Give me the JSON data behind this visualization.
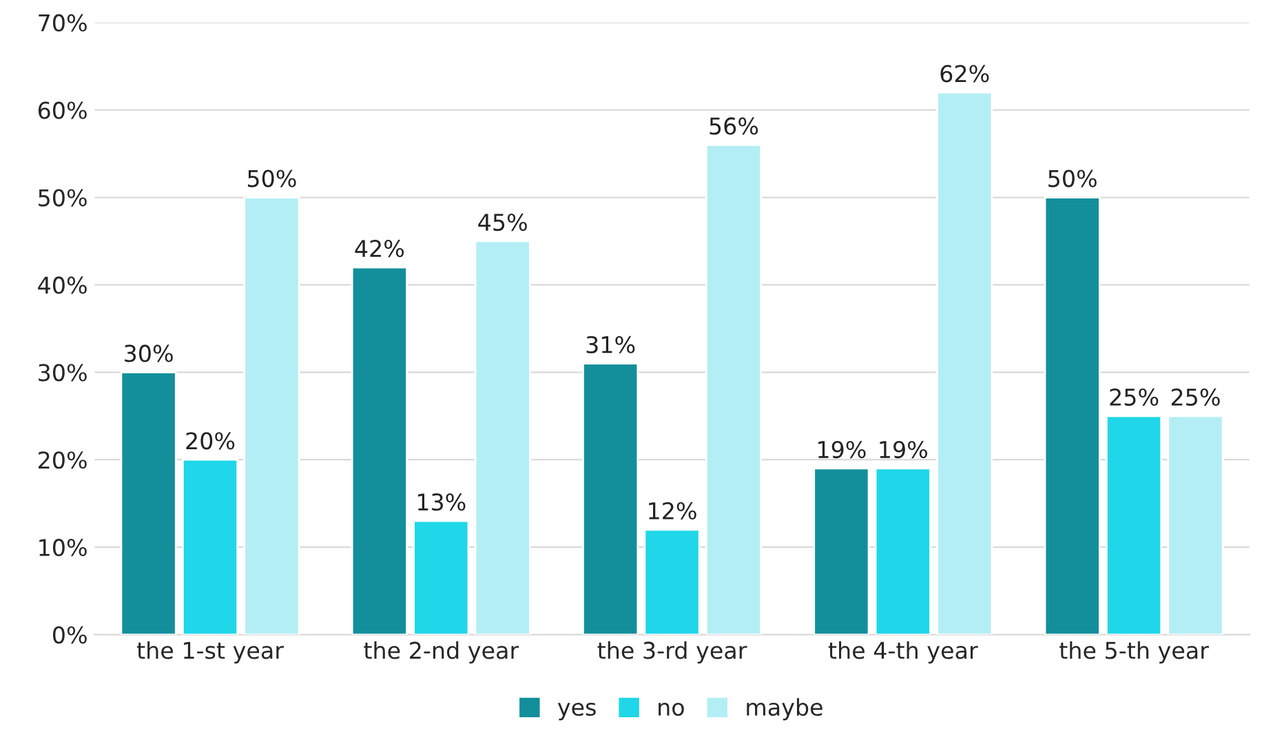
{
  "chart_data": {
    "type": "bar",
    "categories": [
      "the 1-st year",
      "the 2-nd year",
      "the 3-rd year",
      "the 4-th year",
      "the 5-th year"
    ],
    "series": [
      {
        "name": "yes",
        "color": "#138f9b",
        "values": [
          30,
          42,
          31,
          19,
          50
        ],
        "value_labels": [
          "30%",
          "42%",
          "31%",
          "19%",
          "50%"
        ]
      },
      {
        "name": "no",
        "color": "#1fd7e8",
        "values": [
          20,
          13,
          12,
          19,
          25
        ],
        "value_labels": [
          "20%",
          "13%",
          "12%",
          "19%",
          "25%"
        ]
      },
      {
        "name": "maybe",
        "color": "#b4eef5",
        "values": [
          50,
          45,
          56,
          62,
          25
        ],
        "value_labels": [
          "50%",
          "45%",
          "56%",
          "62%",
          "25%"
        ]
      }
    ],
    "ylim": [
      0,
      70
    ],
    "yticks": [
      {
        "value": 0,
        "label": "0%"
      },
      {
        "value": 10,
        "label": "10%"
      },
      {
        "value": 20,
        "label": "20%"
      },
      {
        "value": 30,
        "label": "30%"
      },
      {
        "value": 40,
        "label": "40%"
      },
      {
        "value": 50,
        "label": "50%"
      },
      {
        "value": 60,
        "label": "60%"
      },
      {
        "value": 70,
        "label": "70%"
      }
    ],
    "grid": "y",
    "legend": "bottom"
  }
}
